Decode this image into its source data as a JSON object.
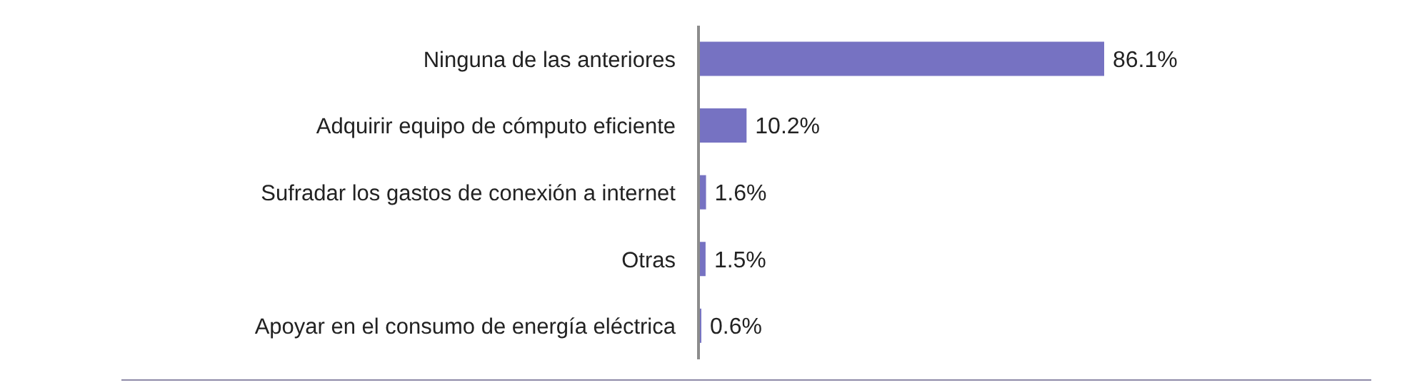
{
  "chart_data": {
    "type": "bar",
    "orientation": "horizontal",
    "categories": [
      "Ninguna de las anteriores",
      "Adquirir equipo de cómputo eficiente",
      "Sufradar los gastos de conexión a internet",
      "Otras",
      "Apoyar en el consumo de energía eléctrica"
    ],
    "values": [
      86.1,
      10.2,
      1.6,
      1.5,
      0.6
    ],
    "value_labels": [
      "86.1%",
      "10.2%",
      "1.6%",
      "1.5%",
      "0.6%"
    ],
    "color": "#7672c2",
    "tick_labels": "y"
  }
}
